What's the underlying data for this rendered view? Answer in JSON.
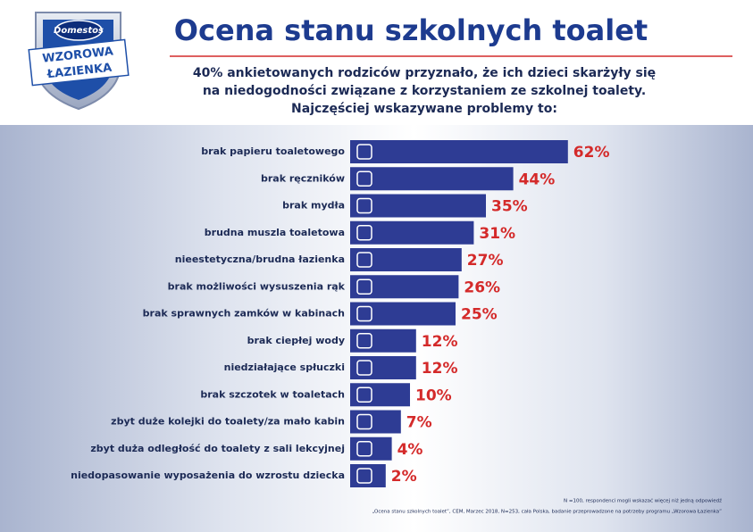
{
  "logo": {
    "brand": "Domestos",
    "line1": "WZOROWA",
    "line2": "ŁAZIENKA"
  },
  "chart_data": {
    "type": "bar",
    "title": "Ocena stanu szkolnych toalet",
    "subtitle": [
      "40% ankietowanych rodziców przyznało, że ich dzieci skarżyły się",
      "na niedogodności związane z korzystaniem ze szkolnej toalety.",
      "Najczęściej wskazywane problemy to:"
    ],
    "categories": [
      "brak papieru toaletowego",
      "brak ręczników",
      "brak mydła",
      "brudna muszla toaletowa",
      "nieestetyczna/brudna łazienka",
      "brak możliwości wysuszenia rąk",
      "brak sprawnych zamków w kabinach",
      "brak ciepłej wody",
      "niedziałające spłuczki",
      "brak szczotek w toaletach",
      "zbyt duże kolejki do toalety/za mało kabin",
      "zbyt duża odległość do toalety z sali lekcyjnej",
      "niedopasowanie wyposażenia do wzrostu dziecka"
    ],
    "values": [
      62,
      44,
      35,
      31,
      27,
      26,
      25,
      12,
      12,
      10,
      7,
      4,
      2
    ],
    "value_labels": [
      "62%",
      "44%",
      "35%",
      "31%",
      "27%",
      "26%",
      "25%",
      "12%",
      "12%",
      "10%",
      "7%",
      "4%",
      "2%"
    ],
    "color": "#2e3c94",
    "label_color": "#d42a2a",
    "notes": [
      "N =100, respondenci mogli wskazać więcej niż jedną odpowiedź",
      "„Ocena stanu szkolnych toalet”, CEM, Marzec 2018, N=253, cała Polska, badanie przeprowadzone na potrzeby programu „Wzorowa Łazienka”"
    ]
  }
}
